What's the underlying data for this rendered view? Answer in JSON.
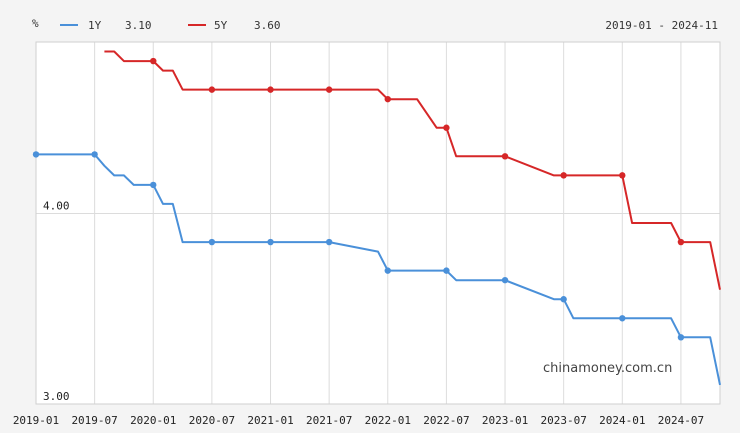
{
  "chart_data": {
    "type": "line",
    "unit_label": "%",
    "date_range": "2019-01 - 2024-11",
    "watermark": "chinamoney.com.cn",
    "x_ticks": [
      "2019-01",
      "2019-07",
      "2020-01",
      "2020-07",
      "2021-01",
      "2021-07",
      "2022-01",
      "2022-07",
      "2023-01",
      "2023-07",
      "2024-01",
      "2024-07"
    ],
    "y_ticks": [
      "4.00",
      "3.00"
    ],
    "ylim": [
      3.0,
      4.9
    ],
    "xlim": [
      "2019-01",
      "2024-11"
    ],
    "grid": true,
    "legend_position": "top-left",
    "series": [
      {
        "name": "1Y",
        "latest": "3.10",
        "color": "#4a90d9",
        "x": [
          "2019-01",
          "2019-07",
          "2019-08",
          "2019-09",
          "2019-10",
          "2019-11",
          "2020-01",
          "2020-02",
          "2020-03",
          "2020-04",
          "2020-07",
          "2021-01",
          "2021-07",
          "2021-12",
          "2022-01",
          "2022-07",
          "2022-08",
          "2023-01",
          "2023-06",
          "2023-07",
          "2023-08",
          "2024-01",
          "2024-06",
          "2024-07",
          "2024-10",
          "2024-11"
        ],
        "values": [
          4.31,
          4.31,
          4.25,
          4.2,
          4.2,
          4.15,
          4.15,
          4.05,
          4.05,
          3.85,
          3.85,
          3.85,
          3.85,
          3.8,
          3.7,
          3.7,
          3.65,
          3.65,
          3.55,
          3.55,
          3.45,
          3.45,
          3.45,
          3.35,
          3.35,
          3.1
        ],
        "markers": [
          "2019-01",
          "2019-07",
          "2020-01",
          "2020-07",
          "2021-01",
          "2021-07",
          "2022-01",
          "2022-07",
          "2023-01",
          "2023-07",
          "2024-01",
          "2024-07"
        ]
      },
      {
        "name": "5Y",
        "latest": "3.60",
        "color": "#d62728",
        "x": [
          "2019-08",
          "2019-09",
          "2019-10",
          "2019-11",
          "2020-01",
          "2020-02",
          "2020-03",
          "2020-04",
          "2020-07",
          "2021-01",
          "2021-07",
          "2021-12",
          "2022-01",
          "2022-02",
          "2022-04",
          "2022-06",
          "2022-07",
          "2022-08",
          "2023-01",
          "2023-06",
          "2023-07",
          "2024-01",
          "2024-02",
          "2024-06",
          "2024-07",
          "2024-10",
          "2024-11"
        ],
        "values": [
          4.85,
          4.85,
          4.8,
          4.8,
          4.8,
          4.75,
          4.75,
          4.65,
          4.65,
          4.65,
          4.65,
          4.65,
          4.6,
          4.6,
          4.6,
          4.45,
          4.45,
          4.3,
          4.3,
          4.2,
          4.2,
          4.2,
          3.95,
          3.95,
          3.85,
          3.85,
          3.6
        ],
        "markers": [
          "2020-01",
          "2020-07",
          "2021-01",
          "2021-07",
          "2022-01",
          "2022-07",
          "2023-01",
          "2023-07",
          "2024-01",
          "2024-07"
        ]
      }
    ]
  }
}
